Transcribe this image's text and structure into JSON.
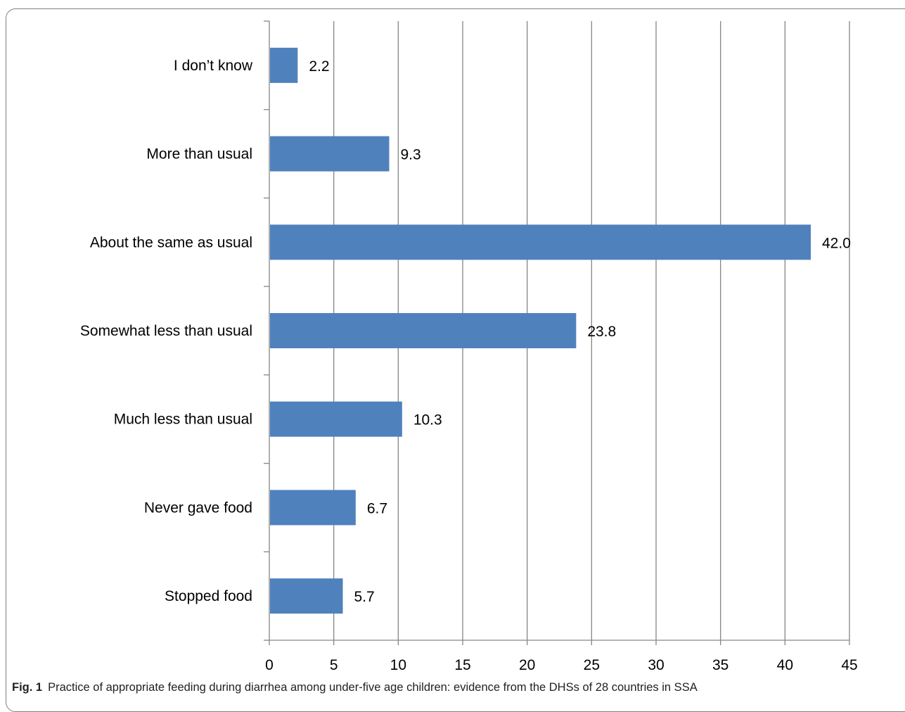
{
  "caption": {
    "label": "Fig. 1",
    "text": "Practice of appropriate feeding during diarrhea among under-five age children: evidence from the DHSs of 28 countries in SSA"
  },
  "chart_data": {
    "type": "bar",
    "orientation": "horizontal",
    "categories": [
      "I don’t know",
      "More than usual",
      "About the same as usual",
      "Somewhat less than usual",
      "Much less than usual",
      "Never gave food",
      "Stopped food"
    ],
    "values": [
      2.2,
      9.3,
      42.0,
      23.8,
      10.3,
      6.7,
      5.7
    ],
    "value_labels": [
      "2.2",
      "9.3",
      "42.0",
      "23.8",
      "10.3",
      "6.7",
      "5.7"
    ],
    "xlim": [
      0,
      45
    ],
    "xticks": [
      0,
      5,
      10,
      15,
      20,
      25,
      30,
      35,
      40,
      45
    ],
    "grid": "vertical",
    "bar_color": "#4f81bd",
    "grid_color": "#868686"
  }
}
